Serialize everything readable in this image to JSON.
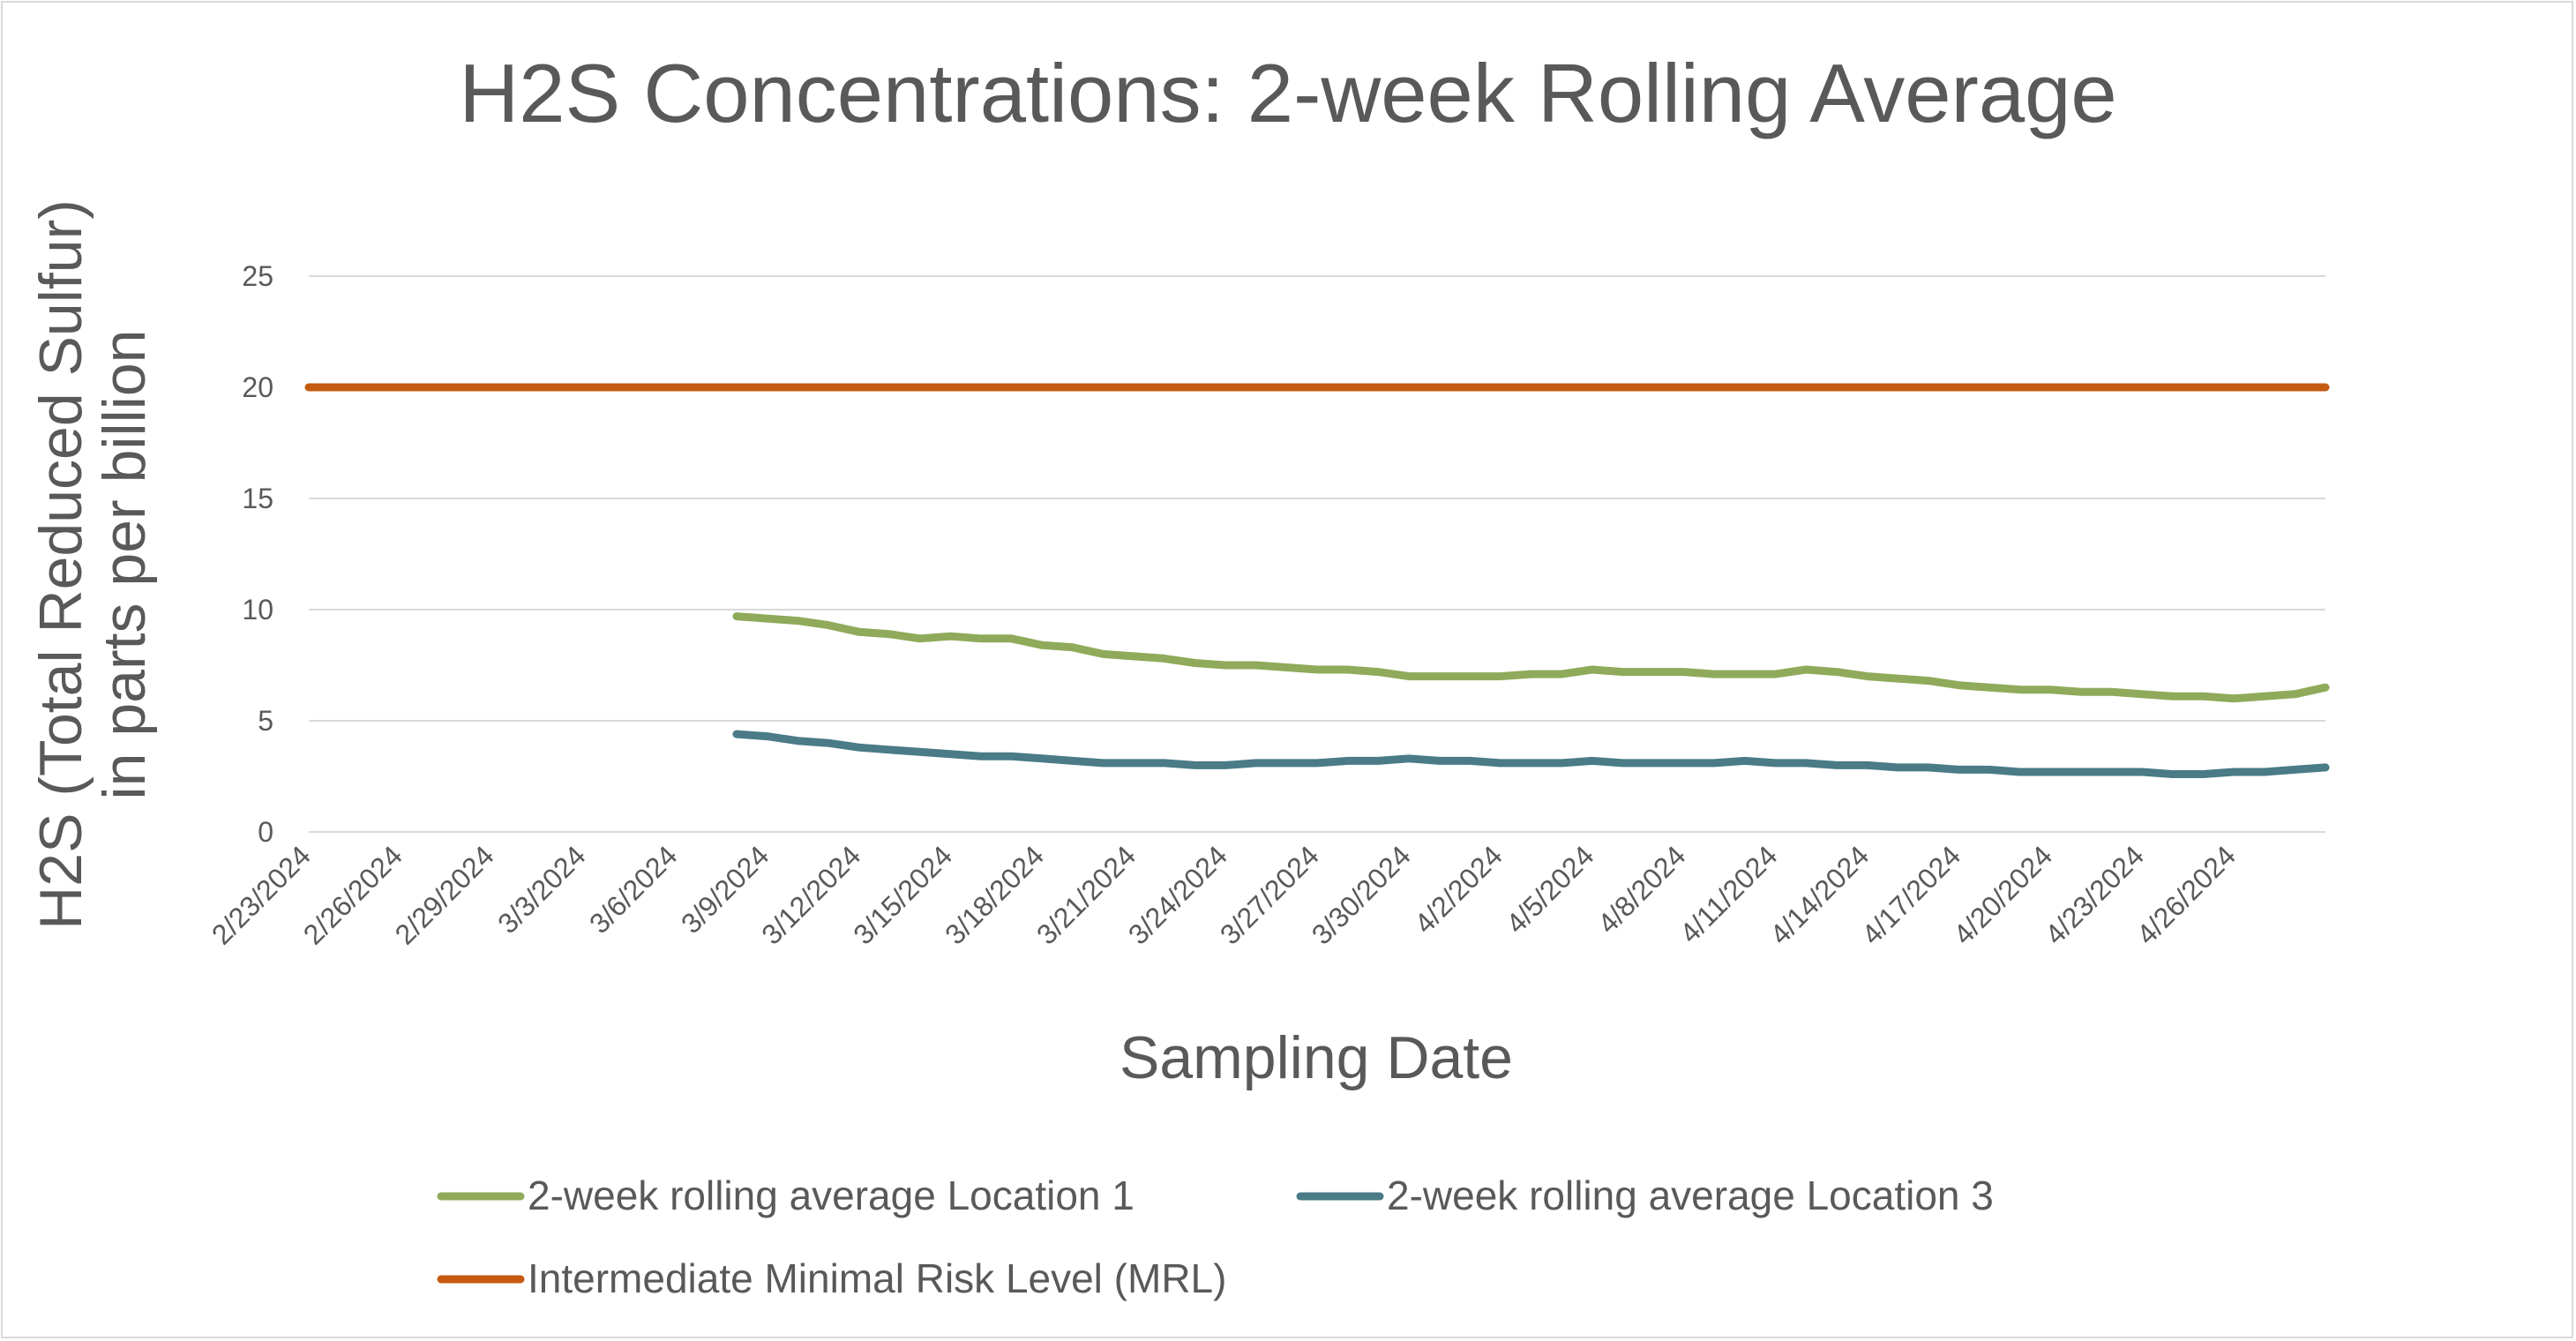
{
  "chart_data": {
    "type": "line",
    "title": "H2S Concentrations: 2-week Rolling Average",
    "xlabel": "Sampling Date",
    "ylabel_lines": [
      "H2S (Total Reduced Sulfur)",
      "in parts per billion"
    ],
    "ylim": [
      0,
      25
    ],
    "yticks": [
      0,
      5,
      10,
      15,
      20,
      25
    ],
    "xlim": [
      "2/23/2024",
      "4/29/2024"
    ],
    "xticks": [
      "2/23/2024",
      "2/26/2024",
      "2/29/2024",
      "3/3/2024",
      "3/6/2024",
      "3/9/2024",
      "3/12/2024",
      "3/15/2024",
      "3/18/2024",
      "3/21/2024",
      "3/24/2024",
      "3/27/2024",
      "3/30/2024",
      "4/2/2024",
      "4/5/2024",
      "4/8/2024",
      "4/11/2024",
      "4/14/2024",
      "4/17/2024",
      "4/20/2024",
      "4/23/2024",
      "4/26/2024"
    ],
    "grid": true,
    "legend_position": "bottom",
    "series": [
      {
        "name": "2-week rolling average Location 1",
        "color": "#8faa5a",
        "x": [
          "3/8/2024",
          "3/9/2024",
          "3/10/2024",
          "3/11/2024",
          "3/12/2024",
          "3/13/2024",
          "3/14/2024",
          "3/15/2024",
          "3/16/2024",
          "3/17/2024",
          "3/18/2024",
          "3/19/2024",
          "3/20/2024",
          "3/21/2024",
          "3/22/2024",
          "3/23/2024",
          "3/24/2024",
          "3/25/2024",
          "3/26/2024",
          "3/27/2024",
          "3/28/2024",
          "3/29/2024",
          "3/30/2024",
          "3/31/2024",
          "4/1/2024",
          "4/2/2024",
          "4/3/2024",
          "4/4/2024",
          "4/5/2024",
          "4/6/2024",
          "4/7/2024",
          "4/8/2024",
          "4/9/2024",
          "4/10/2024",
          "4/11/2024",
          "4/12/2024",
          "4/13/2024",
          "4/14/2024",
          "4/15/2024",
          "4/16/2024",
          "4/17/2024",
          "4/18/2024",
          "4/19/2024",
          "4/20/2024",
          "4/21/2024",
          "4/22/2024",
          "4/23/2024",
          "4/24/2024",
          "4/25/2024",
          "4/26/2024",
          "4/27/2024",
          "4/28/2024",
          "4/29/2024"
        ],
        "y": [
          9.7,
          9.6,
          9.5,
          9.3,
          9.0,
          8.9,
          8.7,
          8.8,
          8.7,
          8.7,
          8.4,
          8.3,
          8.0,
          7.9,
          7.8,
          7.6,
          7.5,
          7.5,
          7.4,
          7.3,
          7.3,
          7.2,
          7.0,
          7.0,
          7.0,
          7.0,
          7.1,
          7.1,
          7.3,
          7.2,
          7.2,
          7.2,
          7.1,
          7.1,
          7.1,
          7.3,
          7.2,
          7.0,
          6.9,
          6.8,
          6.6,
          6.5,
          6.4,
          6.4,
          6.3,
          6.3,
          6.2,
          6.1,
          6.1,
          6.0,
          6.1,
          6.2,
          6.5
        ]
      },
      {
        "name": "2-week rolling average Location 3",
        "color": "#4a7b87",
        "x": [
          "3/8/2024",
          "3/9/2024",
          "3/10/2024",
          "3/11/2024",
          "3/12/2024",
          "3/13/2024",
          "3/14/2024",
          "3/15/2024",
          "3/16/2024",
          "3/17/2024",
          "3/18/2024",
          "3/19/2024",
          "3/20/2024",
          "3/21/2024",
          "3/22/2024",
          "3/23/2024",
          "3/24/2024",
          "3/25/2024",
          "3/26/2024",
          "3/27/2024",
          "3/28/2024",
          "3/29/2024",
          "3/30/2024",
          "3/31/2024",
          "4/1/2024",
          "4/2/2024",
          "4/3/2024",
          "4/4/2024",
          "4/5/2024",
          "4/6/2024",
          "4/7/2024",
          "4/8/2024",
          "4/9/2024",
          "4/10/2024",
          "4/11/2024",
          "4/12/2024",
          "4/13/2024",
          "4/14/2024",
          "4/15/2024",
          "4/16/2024",
          "4/17/2024",
          "4/18/2024",
          "4/19/2024",
          "4/20/2024",
          "4/21/2024",
          "4/22/2024",
          "4/23/2024",
          "4/24/2024",
          "4/25/2024",
          "4/26/2024",
          "4/27/2024",
          "4/28/2024",
          "4/29/2024"
        ],
        "y": [
          4.4,
          4.3,
          4.1,
          4.0,
          3.8,
          3.7,
          3.6,
          3.5,
          3.4,
          3.4,
          3.3,
          3.2,
          3.1,
          3.1,
          3.1,
          3.0,
          3.0,
          3.1,
          3.1,
          3.1,
          3.2,
          3.2,
          3.3,
          3.2,
          3.2,
          3.1,
          3.1,
          3.1,
          3.2,
          3.1,
          3.1,
          3.1,
          3.1,
          3.2,
          3.1,
          3.1,
          3.0,
          3.0,
          2.9,
          2.9,
          2.8,
          2.8,
          2.7,
          2.7,
          2.7,
          2.7,
          2.7,
          2.6,
          2.6,
          2.7,
          2.7,
          2.8,
          2.9
        ]
      },
      {
        "name": "Intermediate Minimal Risk Level (MRL)",
        "color": "#c55a11",
        "x": [
          "2/23/2024",
          "4/29/2024"
        ],
        "y": [
          20,
          20
        ]
      }
    ]
  }
}
